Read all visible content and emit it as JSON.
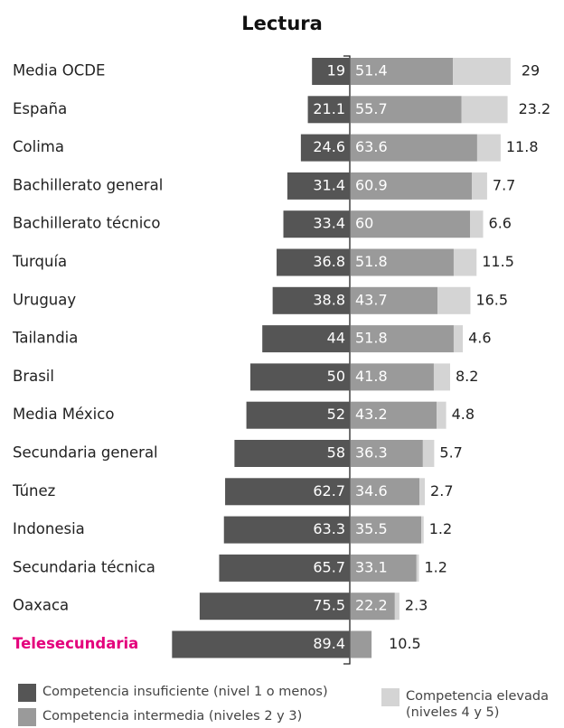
{
  "chart_data": {
    "type": "diverging_stacked_bar",
    "title": "Lectura",
    "categories": [
      "Media OCDE",
      "España",
      "Colima",
      "Bachillerato general",
      "Bachillerato técnico",
      "Turquía",
      "Uruguay",
      "Tailandia",
      "Brasil",
      "Media México",
      "Secundaria general",
      "Túnez",
      "Indonesia",
      "Secundaria técnica",
      "Oaxaca",
      "Telesecundaria"
    ],
    "highlight_index": 15,
    "highlight_color": "#e4007c",
    "series": [
      {
        "name": "Competencia insuficiente (nivel 1 o menos)",
        "color": "#555555",
        "values": [
          19,
          21.1,
          24.6,
          31.4,
          33.4,
          36.8,
          38.8,
          44,
          50,
          52,
          58,
          62.7,
          63.3,
          65.7,
          75.5,
          89.4
        ]
      },
      {
        "name": "Competencia intermedia (niveles 2 y 3)",
        "color": "#9a9a9a",
        "values": [
          51.4,
          55.7,
          63.6,
          60.9,
          60,
          51.8,
          43.7,
          51.8,
          41.8,
          43.2,
          36.3,
          34.6,
          35.5,
          33.1,
          22.2,
          10.5
        ]
      },
      {
        "name": "Competencia elevada (niveles 4 y 5)",
        "color": "#d4d4d4",
        "values": [
          29,
          23.2,
          11.8,
          7.7,
          6.6,
          11.5,
          16.5,
          4.6,
          8.2,
          4.8,
          5.7,
          2.7,
          1.2,
          1.2,
          2.3,
          null
        ]
      }
    ]
  }
}
